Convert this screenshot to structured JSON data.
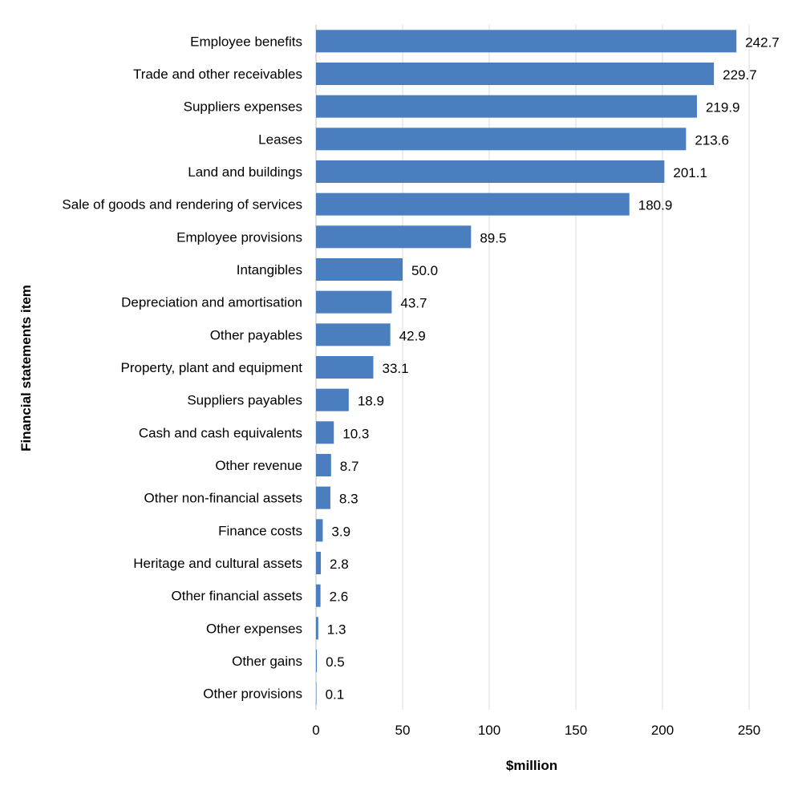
{
  "chart_data": {
    "type": "bar",
    "orientation": "horizontal",
    "categories": [
      "Employee benefits",
      "Trade and other receivables",
      "Suppliers expenses",
      "Leases",
      "Land and buildings",
      "Sale of goods and rendering of services",
      "Employee provisions",
      "Intangibles",
      "Depreciation and amortisation",
      "Other payables",
      "Property, plant and equipment",
      "Suppliers payables",
      "Cash and cash equivalents",
      "Other revenue",
      "Other non-financial assets",
      "Finance costs",
      "Heritage and cultural assets",
      "Other financial assets",
      "Other expenses",
      "Other gains",
      "Other provisions"
    ],
    "values": [
      242.7,
      229.7,
      219.9,
      213.6,
      201.1,
      180.9,
      89.5,
      50.0,
      43.7,
      42.9,
      33.1,
      18.9,
      10.3,
      8.7,
      8.3,
      3.9,
      2.8,
      2.6,
      1.3,
      0.5,
      0.1
    ],
    "value_labels": [
      "242.7",
      "229.7",
      "219.9",
      "213.6",
      "201.1",
      "180.9",
      "89.5",
      "50.0",
      "43.7",
      "42.9",
      "33.1",
      "18.9",
      "10.3",
      "8.7",
      "8.3",
      "3.9",
      "2.8",
      "2.6",
      "1.3",
      "0.5",
      "0.1"
    ],
    "xlabel": "$million",
    "ylabel": "Financial statements item",
    "xlim": [
      0,
      250
    ],
    "xticks": [
      0,
      50,
      100,
      150,
      200,
      250
    ],
    "grid": "vertical",
    "bar_color": "#4a7ebf",
    "legend": false
  }
}
